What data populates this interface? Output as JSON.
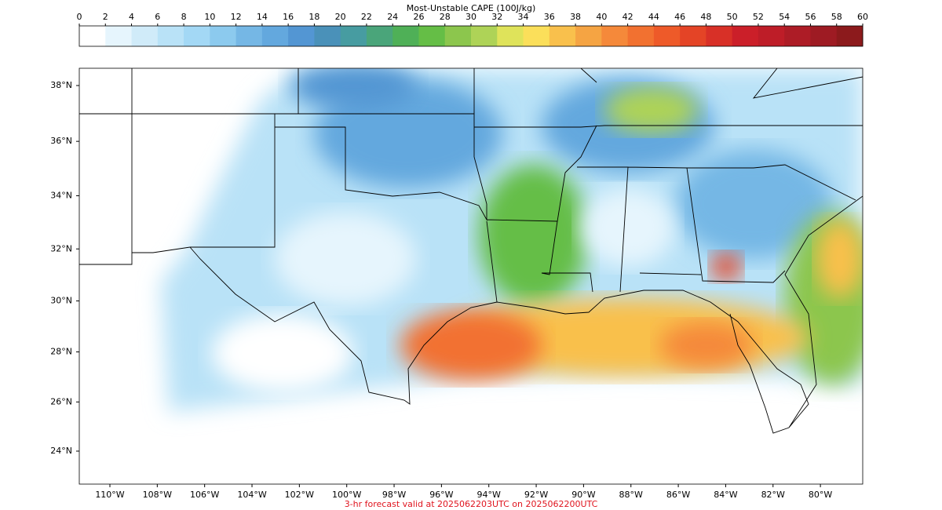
{
  "colorbar": {
    "title": "Most-Unstable CAPE (100J/kg)",
    "ticks": [
      0,
      2,
      4,
      6,
      8,
      10,
      12,
      14,
      16,
      18,
      20,
      22,
      24,
      26,
      28,
      30,
      32,
      34,
      36,
      38,
      40,
      42,
      44,
      46,
      48,
      50,
      52,
      54,
      56,
      58,
      60
    ],
    "colors": [
      "#ffffff",
      "#e6f5fd",
      "#d0ebf9",
      "#b9e2f7",
      "#a3d8f5",
      "#8ccaee",
      "#75b7e5",
      "#63a8de",
      "#5396d3",
      "#4a91b9",
      "#479ca1",
      "#4aa57a",
      "#4fb057",
      "#65be46",
      "#8cc64d",
      "#aed357",
      "#dfe35a",
      "#fbdf5a",
      "#f9c04c",
      "#f5a443",
      "#f5893a",
      "#f27130",
      "#ee5a29",
      "#e44426",
      "#d83027",
      "#cb1f29",
      "#be1d28",
      "#ad1c26",
      "#9e1b23",
      "#8c1a1c"
    ]
  },
  "map": {
    "lat_labels": [
      {
        "value": 38,
        "label": "38°N"
      },
      {
        "value": 36,
        "label": "36°N"
      },
      {
        "value": 34,
        "label": "34°N"
      },
      {
        "value": 32,
        "label": "32°N"
      },
      {
        "value": 30,
        "label": "30°N"
      },
      {
        "value": 28,
        "label": "28°N"
      },
      {
        "value": 26,
        "label": "26°N"
      },
      {
        "value": 24,
        "label": "24°N"
      }
    ],
    "lon_labels": [
      {
        "value": -110,
        "label": "110°W"
      },
      {
        "value": -108,
        "label": "108°W"
      },
      {
        "value": -106,
        "label": "106°W"
      },
      {
        "value": -104,
        "label": "104°W"
      },
      {
        "value": -102,
        "label": "102°W"
      },
      {
        "value": -100,
        "label": "100°W"
      },
      {
        "value": -98,
        "label": "98°W"
      },
      {
        "value": -96,
        "label": "96°W"
      },
      {
        "value": -94,
        "label": "94°W"
      },
      {
        "value": -92,
        "label": "92°W"
      },
      {
        "value": -90,
        "label": "90°W"
      },
      {
        "value": -88,
        "label": "88°W"
      },
      {
        "value": -86,
        "label": "86°W"
      },
      {
        "value": -84,
        "label": "84°W"
      },
      {
        "value": -82,
        "label": "82°W"
      },
      {
        "value": -80,
        "label": "80°W"
      }
    ]
  },
  "footer": "3-hr forecast valid at 2025062203UTC on 2025062200UTC"
}
